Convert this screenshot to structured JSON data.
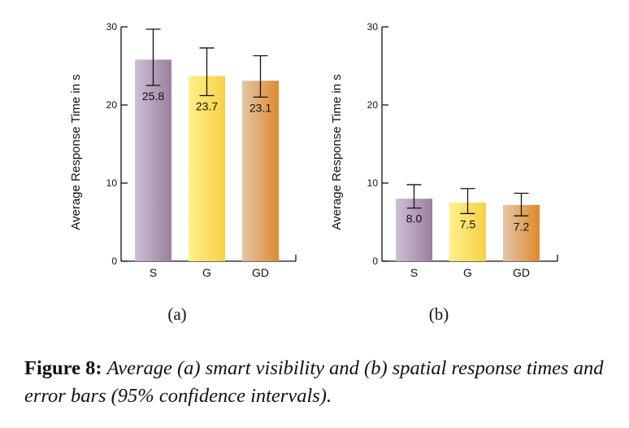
{
  "chart_data": [
    {
      "type": "bar",
      "panel_label": "(a)",
      "ylabel": "Average Response Time in s",
      "ylim": [
        0,
        30
      ],
      "yticks": [
        0,
        10,
        20,
        30
      ],
      "categories": [
        "S",
        "G",
        "GD"
      ],
      "values": [
        25.8,
        23.7,
        23.1
      ],
      "value_labels": [
        "25.8",
        "23.7",
        "23.1"
      ],
      "error_low": [
        22.5,
        21.2,
        21.0
      ],
      "error_high": [
        29.7,
        27.3,
        26.3
      ],
      "colors": [
        [
          "#cdbfd6",
          "#9c7f9e"
        ],
        [
          "#fff08a",
          "#f7d045"
        ],
        [
          "#e2c7a8",
          "#e0892c"
        ]
      ]
    },
    {
      "type": "bar",
      "panel_label": "(b)",
      "ylabel": "Average Response Time in s",
      "ylim": [
        0,
        30
      ],
      "yticks": [
        0,
        10,
        20,
        30
      ],
      "categories": [
        "S",
        "G",
        "GD"
      ],
      "values": [
        8.0,
        7.5,
        7.2
      ],
      "value_labels": [
        "8.0",
        "7.5",
        "7.2"
      ],
      "error_low": [
        6.8,
        6.1,
        5.8
      ],
      "error_high": [
        9.8,
        9.3,
        8.7
      ],
      "colors": [
        [
          "#cdbfd6",
          "#9c7f9e"
        ],
        [
          "#fff08a",
          "#f7d045"
        ],
        [
          "#e2c7a8",
          "#e0892c"
        ]
      ]
    }
  ],
  "caption": {
    "label": "Figure 8:",
    "text": "Average (a) smart visibility and (b) spatial response times and error bars (95% confidence intervals)."
  }
}
